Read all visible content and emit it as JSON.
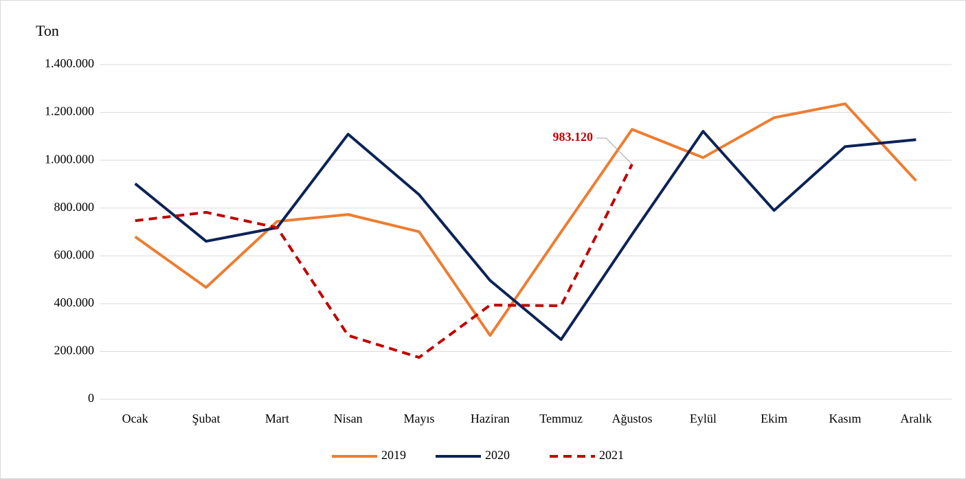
{
  "chart_data": {
    "type": "line",
    "y_label": "Ton",
    "categories": [
      "Ocak",
      "Şubat",
      "Mart",
      "Nisan",
      "Mayıs",
      "Haziran",
      "Temmuz",
      "Ağustos",
      "Eylül",
      "Ekim",
      "Kasım",
      "Aralık"
    ],
    "series": [
      {
        "name": "2019",
        "color": "#ed7d31",
        "dashed": false,
        "values": [
          680000,
          468000,
          744000,
          773000,
          701000,
          267000,
          700000,
          1129000,
          1011000,
          1178000,
          1236000,
          914000
        ]
      },
      {
        "name": "2020",
        "color": "#0c2356",
        "dashed": false,
        "values": [
          902000,
          661000,
          718000,
          1109000,
          856000,
          497000,
          250000,
          690000,
          1121000,
          790000,
          1057000,
          1086000
        ]
      },
      {
        "name": "2021",
        "color": "#c00000",
        "dashed": true,
        "values": [
          747000,
          782000,
          718000,
          267000,
          175000,
          394000,
          391000,
          983120,
          null,
          null,
          null,
          null
        ],
        "value_labels": [
          null,
          null,
          null,
          null,
          null,
          null,
          null,
          "983.120",
          null,
          null,
          null,
          null
        ]
      }
    ],
    "ylim": [
      0,
      1400000
    ],
    "yticks": [
      {
        "value": 0,
        "label": "0"
      },
      {
        "value": 200000,
        "label": "200.000"
      },
      {
        "value": 400000,
        "label": "400.000"
      },
      {
        "value": 600000,
        "label": "600.000"
      },
      {
        "value": 800000,
        "label": "800.000"
      },
      {
        "value": 1000000,
        "label": "1.000.000"
      },
      {
        "value": 1200000,
        "label": "1.200.000"
      },
      {
        "value": 1400000,
        "label": "1.400.000"
      }
    ],
    "grid": true,
    "legend": "bottom"
  }
}
